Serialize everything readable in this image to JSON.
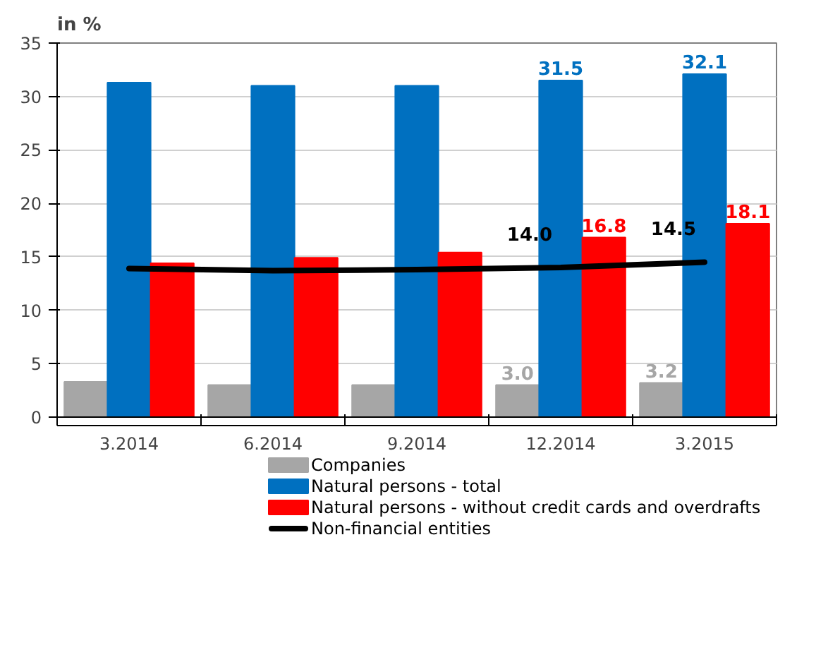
{
  "chart_data": {
    "type": "bar",
    "title": "in %",
    "categories": [
      "3.2014",
      "6.2014",
      "9.2014",
      "12.2014",
      "3.2015"
    ],
    "series": [
      {
        "name": "Companies",
        "color": "#a6a6a6",
        "values": [
          3.3,
          3.0,
          3.0,
          3.0,
          3.2
        ],
        "value_labels": [
          null,
          null,
          null,
          "3.0",
          "3.2"
        ]
      },
      {
        "name": "Natural persons - total",
        "color": "#0070c0",
        "values": [
          31.3,
          31.0,
          31.0,
          31.5,
          32.1
        ],
        "value_labels": [
          null,
          null,
          null,
          "31.5",
          "32.1"
        ]
      },
      {
        "name": "Natural persons - without credit cards and overdrafts",
        "color": "#ff0000",
        "values": [
          14.4,
          14.9,
          15.4,
          16.8,
          18.1
        ],
        "value_labels": [
          null,
          null,
          null,
          "16.8",
          "18.1"
        ]
      },
      {
        "name": "Non-financial entities",
        "color": "#000000",
        "type": "line",
        "values": [
          13.9,
          13.7,
          13.8,
          14.0,
          14.5
        ],
        "value_labels": [
          null,
          null,
          null,
          "14.0",
          "14.5"
        ]
      }
    ],
    "ylim": [
      0,
      35
    ],
    "yticks": [
      0,
      5,
      10,
      15,
      20,
      25,
      30,
      35
    ],
    "grid": "y",
    "legend": "bottom",
    "marker": "none",
    "line_style": "solid"
  }
}
